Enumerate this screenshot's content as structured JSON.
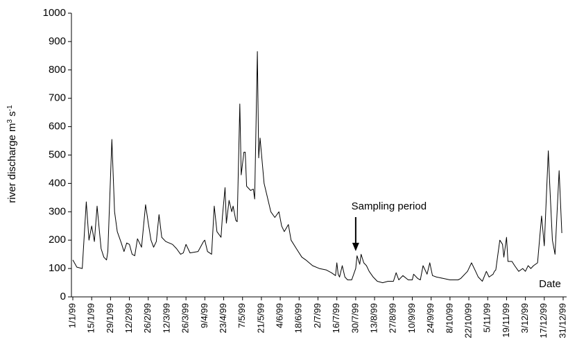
{
  "chart_data": {
    "type": "line",
    "ylabel": [
      "river discharge m",
      "3",
      " s",
      "-1"
    ],
    "xlabel": "Date",
    "annotations": [
      {
        "text": "Sampling period",
        "x": "30/7/99"
      }
    ],
    "color": "#000000",
    "ylim": [
      0,
      1000
    ],
    "yticks": [
      0,
      100,
      200,
      300,
      400,
      500,
      600,
      700,
      800,
      900,
      1000
    ],
    "xlim": [
      "1/1/99",
      "31/12/99"
    ],
    "xticks": [
      "1/1/99",
      "15/1/99",
      "29/1/99",
      "12/2/99",
      "26/2/99",
      "12/3/99",
      "26/3/99",
      "9/4/99",
      "23/4/99",
      "7/5/99",
      "21/5/99",
      "4/6/99",
      "18/6/99",
      "2/7/99",
      "16/7/99",
      "30/7/99",
      "13/8/99",
      "27/8/99",
      "10/9/99",
      "24/9/99",
      "8/10/99",
      "22/10/99",
      "5/11/99",
      "19/11/99",
      "3/12/99",
      "17/12/99",
      "31/12/99"
    ],
    "grid": false,
    "x": [
      "1/1/99",
      "4/1/99",
      "8/1/99",
      "11/1/99",
      "13/1/99",
      "15/1/99",
      "17/1/99",
      "19/1/99",
      "21/1/99",
      "22/1/99",
      "24/1/99",
      "26/1/99",
      "27/1/99",
      "30/1/99",
      "1/2/99",
      "3/2/99",
      "6/2/99",
      "8/2/99",
      "10/2/99",
      "12/2/99",
      "14/2/99",
      "16/2/99",
      "18/2/99",
      "21/2/99",
      "24/2/99",
      "26/2/99",
      "28/2/99",
      "2/3/99",
      "4/3/99",
      "6/3/99",
      "8/3/99",
      "11/3/99",
      "16/3/99",
      "19/3/99",
      "22/3/99",
      "24/3/99",
      "26/3/99",
      "29/3/99",
      "4/4/99",
      "8/4/99",
      "9/4/99",
      "11/4/99",
      "14/4/99",
      "16/4/99",
      "18/4/99",
      "21/4/99",
      "22/4/99",
      "24/4/99",
      "25/4/99",
      "27/4/99",
      "29/4/99",
      "30/4/99",
      "2/5/99",
      "3/5/99",
      "5/5/99",
      "6/5/99",
      "8/5/99",
      "9/5/99",
      "10/5/99",
      "13/5/99",
      "15/5/99",
      "16/5/99",
      "18/5/99",
      "19/5/99",
      "20/5/99",
      "23/5/99",
      "25/5/99",
      "28/5/99",
      "31/5/99",
      "3/6/99",
      "5/6/99",
      "7/6/99",
      "10/6/99",
      "12/6/99",
      "16/6/99",
      "20/6/99",
      "23/6/99",
      "28/6/99",
      "3/7/99",
      "8/7/99",
      "12/7/99",
      "15/7/99",
      "16/7/99",
      "17/7/99",
      "18/7/99",
      "20/7/99",
      "22/7/99",
      "24/7/99",
      "27/7/99",
      "30/7/99",
      "31/7/99",
      "2/8/99",
      "3/8/99",
      "5/8/99",
      "7/8/99",
      "9/8/99",
      "12/8/99",
      "15/8/99",
      "19/8/99",
      "23/8/99",
      "27/8/99",
      "29/8/99",
      "31/8/99",
      "3/9/99",
      "7/9/99",
      "10/9/99",
      "11/9/99",
      "14/9/99",
      "16/9/99",
      "18/9/99",
      "21/9/99",
      "23/9/99",
      "25/9/99",
      "28/9/99",
      "3/10/99",
      "8/10/99",
      "14/10/99",
      "16/10/99",
      "21/10/99",
      "24/10/99",
      "27/10/99",
      "29/10/99",
      "1/11/99",
      "4/11/99",
      "6/11/99",
      "9/11/99",
      "10/11/99",
      "11/11/99",
      "14/11/99",
      "16/11/99",
      "17/11/99",
      "19/11/99",
      "20/11/99",
      "23/11/99",
      "25/11/99",
      "28/11/99",
      "1/12/99",
      "3/12/99",
      "5/12/99",
      "7/12/99",
      "9/12/99",
      "12/12/99",
      "15/12/99",
      "17/12/99",
      "20/12/99",
      "21/12/99",
      "23/12/99",
      "25/12/99",
      "28/12/99",
      "30/12/99"
    ],
    "values": [
      130,
      105,
      100,
      335,
      200,
      250,
      195,
      320,
      220,
      170,
      140,
      130,
      160,
      555,
      300,
      230,
      190,
      160,
      190,
      185,
      150,
      145,
      205,
      175,
      325,
      260,
      200,
      175,
      195,
      290,
      210,
      195,
      185,
      170,
      150,
      155,
      185,
      155,
      160,
      195,
      200,
      160,
      150,
      320,
      230,
      210,
      280,
      385,
      260,
      340,
      300,
      320,
      270,
      265,
      680,
      430,
      510,
      510,
      390,
      375,
      380,
      345,
      865,
      490,
      560,
      400,
      360,
      300,
      280,
      300,
      250,
      230,
      255,
      200,
      170,
      140,
      130,
      110,
      100,
      95,
      85,
      75,
      120,
      80,
      70,
      110,
      70,
      60,
      60,
      100,
      145,
      115,
      150,
      120,
      110,
      90,
      70,
      55,
      50,
      55,
      55,
      85,
      60,
      75,
      60,
      60,
      80,
      65,
      60,
      110,
      80,
      120,
      75,
      70,
      65,
      60,
      60,
      65,
      90,
      120,
      90,
      70,
      55,
      90,
      70,
      80,
      90,
      95,
      200,
      185,
      140,
      210,
      125,
      125,
      110,
      90,
      100,
      90,
      110,
      100,
      110,
      120,
      285,
      180,
      515,
      400,
      200,
      150,
      445,
      225
    ]
  }
}
